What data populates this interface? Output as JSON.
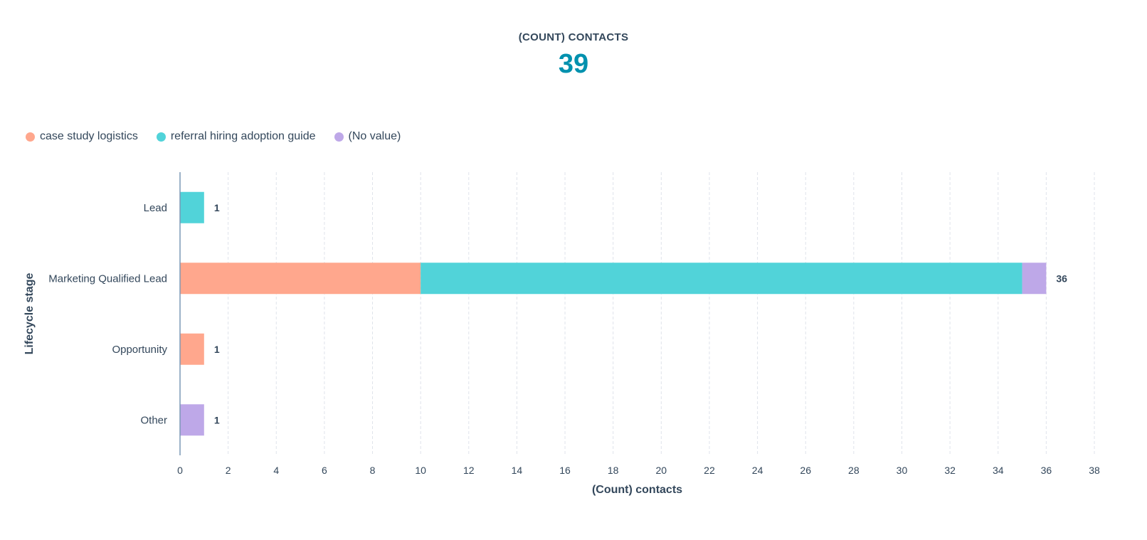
{
  "summary": {
    "label": "(COUNT) CONTACTS",
    "value": "39"
  },
  "colors": {
    "accent": "#0091ae",
    "text": "#33475b",
    "axis": "#7c98b6",
    "grid": "#dfe3eb"
  },
  "chart_data": {
    "type": "bar",
    "orientation": "horizontal",
    "stacked": true,
    "categories": [
      "Lead",
      "Marketing Qualified Lead",
      "Opportunity",
      "Other"
    ],
    "series": [
      {
        "name": "case study logistics",
        "color": "#ffa78d",
        "values": [
          0,
          10,
          1,
          0
        ]
      },
      {
        "name": "referral hiring adoption guide",
        "color": "#51d3d9",
        "values": [
          1,
          25,
          0,
          0
        ]
      },
      {
        "name": "(No value)",
        "color": "#bea8e8",
        "values": [
          0,
          1,
          0,
          1
        ]
      }
    ],
    "totals": [
      1,
      36,
      1,
      1
    ],
    "xlabel": "(Count) contacts",
    "ylabel": "Lifecycle stage",
    "xlim": [
      0,
      38
    ],
    "xticks": [
      0,
      2,
      4,
      6,
      8,
      10,
      12,
      14,
      16,
      18,
      20,
      22,
      24,
      26,
      28,
      30,
      32,
      34,
      36,
      38
    ],
    "grid": "vertical-dashed",
    "legend_position": "top-left"
  }
}
